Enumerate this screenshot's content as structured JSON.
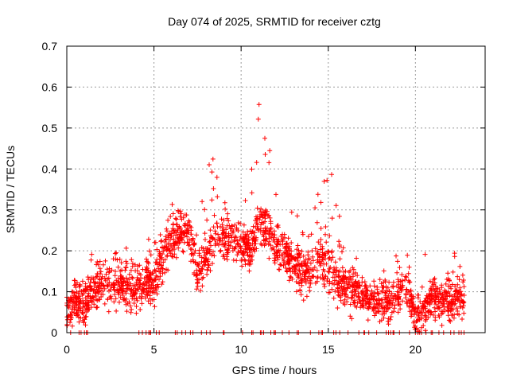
{
  "chart_data": {
    "type": "scatter",
    "title": "Day 074 of 2025, SRMTID for receiver cztg",
    "xlabel": "GPS time / hours",
    "ylabel": "SRMTID / TECUs",
    "xlim": [
      0,
      24
    ],
    "ylim": [
      0,
      0.7
    ],
    "xticks": [
      0,
      5,
      10,
      15,
      20
    ],
    "yticks": [
      0,
      0.1,
      0.2,
      0.3,
      0.4,
      0.5,
      0.6,
      0.7
    ],
    "xtick_labels": [
      "0",
      "5",
      "10",
      "15",
      "20"
    ],
    "ytick_labels": [
      "0",
      "0.1",
      "0.2",
      "0.3",
      "0.4",
      "0.5",
      "0.6",
      "0.7"
    ],
    "grid": true,
    "marker": "+",
    "color": "#ff0000",
    "envelope": {
      "x": [
        0,
        0.5,
        1,
        1.5,
        2,
        2.5,
        3,
        3.5,
        4,
        4.5,
        5,
        5.5,
        6,
        6.5,
        7,
        7.5,
        8,
        8.5,
        9,
        9.5,
        10,
        10.5,
        11,
        11.5,
        12,
        12.5,
        13,
        13.5,
        14,
        14.5,
        15,
        15.5,
        16,
        16.5,
        17,
        17.5,
        18,
        18.5,
        19,
        19.5,
        20,
        20.5,
        21,
        21.5,
        22,
        22.5,
        22.8
      ],
      "mean": [
        0.05,
        0.07,
        0.07,
        0.1,
        0.12,
        0.11,
        0.12,
        0.11,
        0.1,
        0.12,
        0.12,
        0.18,
        0.22,
        0.24,
        0.25,
        0.14,
        0.18,
        0.24,
        0.22,
        0.23,
        0.22,
        0.2,
        0.27,
        0.25,
        0.2,
        0.2,
        0.16,
        0.15,
        0.15,
        0.17,
        0.17,
        0.12,
        0.11,
        0.1,
        0.09,
        0.08,
        0.08,
        0.07,
        0.1,
        0.11,
        0.04,
        0.06,
        0.08,
        0.08,
        0.08,
        0.08,
        0.07
      ],
      "max": [
        0.12,
        0.13,
        0.14,
        0.2,
        0.22,
        0.18,
        0.24,
        0.2,
        0.19,
        0.23,
        0.24,
        0.25,
        0.32,
        0.3,
        0.36,
        0.27,
        0.45,
        0.43,
        0.37,
        0.34,
        0.32,
        0.39,
        0.62,
        0.5,
        0.47,
        0.35,
        0.3,
        0.3,
        0.3,
        0.36,
        0.43,
        0.32,
        0.22,
        0.2,
        0.15,
        0.13,
        0.17,
        0.13,
        0.21,
        0.2,
        0.07,
        0.24,
        0.13,
        0.15,
        0.15,
        0.24,
        0.12
      ]
    },
    "n_points": 2200,
    "seed": 74
  }
}
